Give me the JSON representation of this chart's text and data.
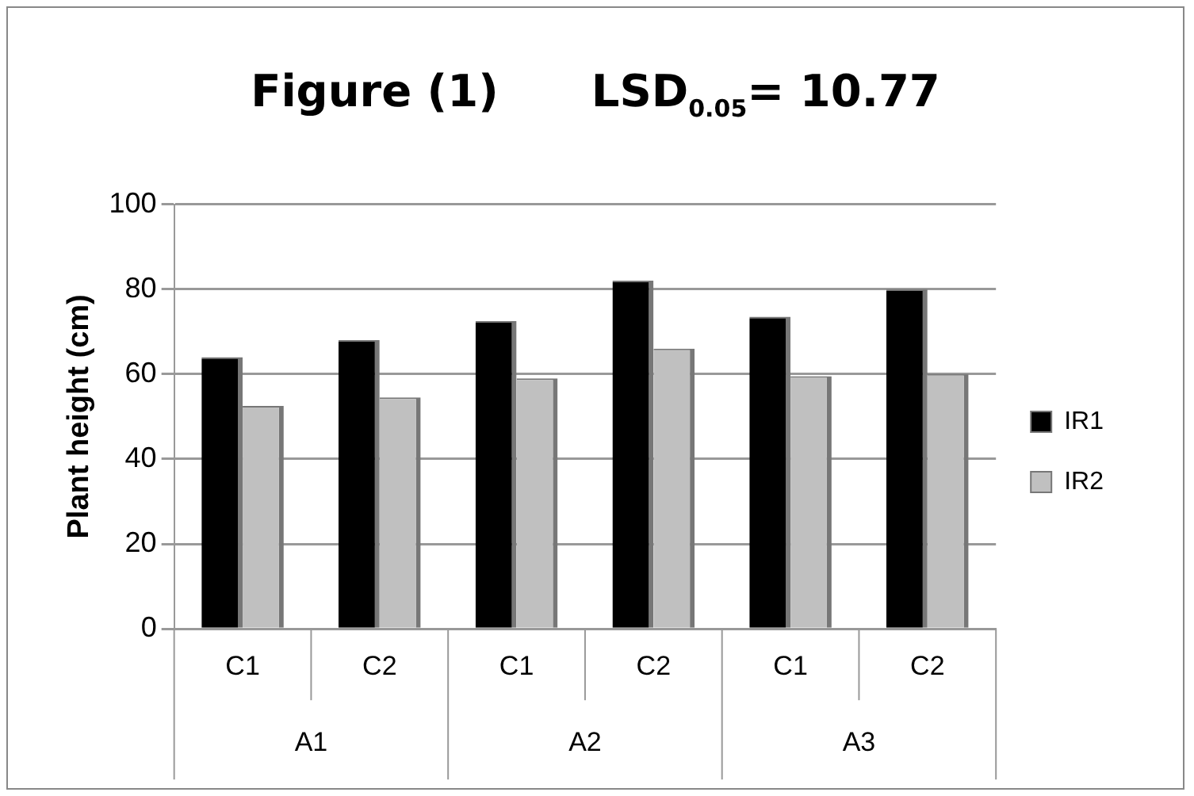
{
  "chart_data": {
    "type": "bar",
    "title": "Figure (1)      LSD$_{0.05}$= 10.77",
    "ylabel": "Plant height (cm)",
    "categories": [
      "C1",
      "C2",
      "C1",
      "C2",
      "C1",
      "C2"
    ],
    "annotations": [
      "A1",
      "A2",
      "A3"
    ],
    "series": [
      {
        "name": "IR1",
        "color": "#000000",
        "values": [
          64,
          68,
          72.5,
          82,
          73.5,
          80
        ]
      },
      {
        "name": "IR2",
        "color": "#c0c0c0",
        "values": [
          52.5,
          54.5,
          59,
          66,
          59.5,
          60
        ]
      }
    ],
    "ylim": [
      0,
      100
    ],
    "yticks": [
      0,
      20,
      40,
      60,
      80,
      100
    ],
    "grid": "y",
    "legend": "right"
  }
}
